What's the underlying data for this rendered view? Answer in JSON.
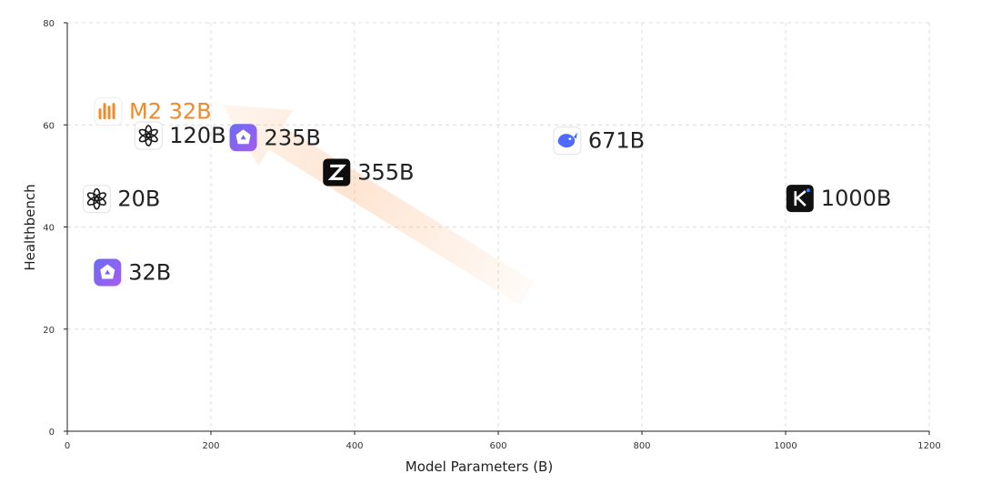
{
  "chart_data": {
    "type": "scatter",
    "xlabel": "Model Parameters (B)",
    "ylabel": "Healthbench",
    "xlim": [
      0,
      1200
    ],
    "ylim": [
      0,
      80
    ],
    "x_ticks": [
      0,
      200,
      400,
      600,
      800,
      1000,
      1200
    ],
    "y_ticks": [
      0,
      20,
      40,
      60,
      80
    ],
    "grid": true,
    "trend_arrow": {
      "from": [
        640,
        27
      ],
      "to": [
        215,
        64
      ],
      "color": "#f9a05a"
    },
    "points": [
      {
        "label": "M2 32B",
        "x": 57,
        "y": 62.6,
        "icon": "minimax-logo-icon",
        "highlight": true,
        "color": "#f08a2c"
      },
      {
        "label": "120B",
        "x": 113,
        "y": 57.9,
        "icon": "openai-logo-icon"
      },
      {
        "label": "235B",
        "x": 245,
        "y": 57.5,
        "icon": "qwen-logo-icon"
      },
      {
        "label": "355B",
        "x": 375,
        "y": 50.7,
        "icon": "zhipu-glm-logo-icon"
      },
      {
        "label": "671B",
        "x": 696,
        "y": 56.9,
        "icon": "deepseek-whale-icon"
      },
      {
        "label": "1000B",
        "x": 1020,
        "y": 45.6,
        "icon": "kimi-logo-icon"
      },
      {
        "label": "20B",
        "x": 41,
        "y": 45.5,
        "icon": "openai-logo-icon"
      },
      {
        "label": "32B",
        "x": 56,
        "y": 31.1,
        "icon": "qwen-logo-icon"
      }
    ]
  }
}
